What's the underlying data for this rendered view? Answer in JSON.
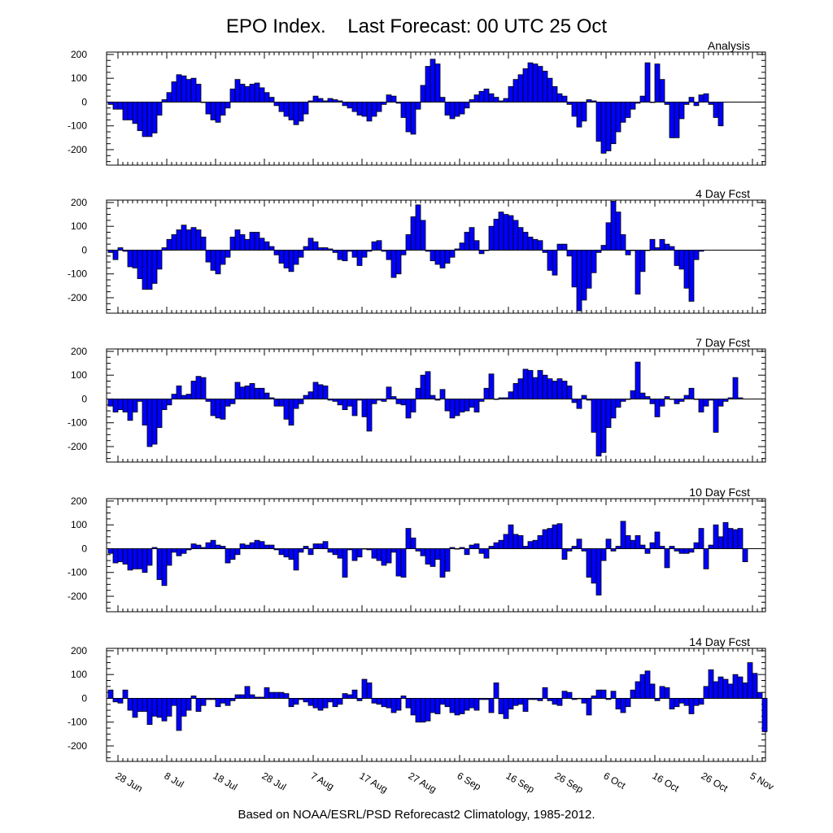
{
  "title": "EPO Index.    Last Forecast: 00 UTC 25 Oct",
  "footer": "Based on NOAA/ESRL/PSD Reforecast2 Climatology, 1985-2012.",
  "colors": {
    "bar_fill": "#0000ff",
    "bar_stroke": "#000000",
    "axis": "#000000"
  },
  "chart_data": {
    "type": "bar",
    "x_start": "2013-06-26",
    "x_ticks": [
      "28 Jun",
      "8 Jul",
      "18 Jul",
      "28 Jul",
      "7 Aug",
      "17 Aug",
      "27 Aug",
      "6 Sep",
      "16 Sep",
      "26 Sep",
      "6 Oct",
      "16 Oct",
      "26 Oct",
      "5 Nov"
    ],
    "y_ticks": [
      200,
      100,
      0,
      -100,
      -200
    ],
    "ylim": [
      -265,
      210
    ],
    "series": [
      {
        "name": "Analysis",
        "values": [
          -10,
          -30,
          -30,
          -75,
          -75,
          -90,
          -120,
          -145,
          -145,
          -130,
          -55,
          10,
          40,
          85,
          115,
          110,
          95,
          100,
          75,
          0,
          -50,
          -75,
          -85,
          -55,
          -25,
          55,
          95,
          75,
          65,
          75,
          80,
          60,
          40,
          20,
          -15,
          -40,
          -60,
          -75,
          -95,
          -80,
          -50,
          5,
          25,
          15,
          5,
          15,
          10,
          5,
          -15,
          -25,
          -40,
          -55,
          -60,
          -80,
          -60,
          -40,
          -10,
          30,
          25,
          -5,
          -65,
          -125,
          -135,
          -30,
          70,
          150,
          180,
          160,
          20,
          -55,
          -70,
          -60,
          -50,
          -25,
          10,
          30,
          45,
          55,
          35,
          20,
          5,
          15,
          65,
          95,
          115,
          140,
          165,
          160,
          150,
          130,
          100,
          65,
          35,
          25,
          -10,
          -60,
          -105,
          -80,
          10,
          5,
          -165,
          -215,
          -205,
          -175,
          -125,
          -85,
          -65,
          -30,
          -5,
          25,
          165,
          0,
          160,
          95,
          -10,
          -150,
          -150,
          -70,
          -10,
          20,
          -15,
          30,
          35,
          -10,
          -65,
          -100
        ]
      },
      {
        "name": "4 Day Fcst",
        "values": [
          -10,
          -40,
          10,
          -5,
          -70,
          -75,
          -120,
          -165,
          -165,
          -140,
          -80,
          10,
          45,
          65,
          85,
          105,
          85,
          95,
          85,
          55,
          -50,
          -85,
          -100,
          -60,
          -30,
          55,
          85,
          65,
          45,
          75,
          75,
          50,
          35,
          15,
          -20,
          -55,
          -75,
          -90,
          -60,
          -30,
          15,
          50,
          35,
          10,
          10,
          5,
          -10,
          -40,
          -45,
          -5,
          -30,
          -65,
          -30,
          -5,
          35,
          40,
          -5,
          -40,
          -115,
          -100,
          -20,
          65,
          140,
          190,
          125,
          -5,
          -45,
          -60,
          -75,
          -55,
          -30,
          5,
          30,
          75,
          95,
          40,
          -15,
          0,
          100,
          130,
          160,
          150,
          145,
          125,
          95,
          75,
          55,
          45,
          40,
          -10,
          -85,
          -105,
          25,
          25,
          -25,
          -155,
          -255,
          -210,
          -160,
          -95,
          -10,
          20,
          115,
          205,
          160,
          65,
          -20,
          0,
          -185,
          -90,
          0,
          45,
          10,
          45,
          25,
          15,
          -65,
          -80,
          -160,
          -215,
          -40,
          -5
        ]
      },
      {
        "name": "7 Day Fcst",
        "values": [
          -30,
          -55,
          -45,
          -55,
          -90,
          -55,
          -10,
          -110,
          -200,
          -190,
          -120,
          -45,
          -25,
          20,
          55,
          15,
          20,
          75,
          95,
          90,
          -10,
          -70,
          -80,
          -85,
          -30,
          -20,
          70,
          50,
          55,
          65,
          45,
          45,
          25,
          5,
          -30,
          -30,
          -85,
          -110,
          -40,
          -20,
          15,
          30,
          70,
          60,
          55,
          -5,
          -10,
          -25,
          -45,
          -30,
          -70,
          -5,
          -75,
          -135,
          -20,
          -5,
          -10,
          50,
          10,
          -20,
          -25,
          -80,
          -55,
          45,
          100,
          115,
          15,
          -5,
          40,
          -50,
          -80,
          -70,
          -55,
          -50,
          -35,
          -55,
          -10,
          45,
          105,
          0,
          5,
          5,
          30,
          65,
          85,
          125,
          120,
          90,
          120,
          100,
          85,
          75,
          85,
          75,
          55,
          -15,
          -40,
          15,
          -5,
          -140,
          -240,
          -225,
          -120,
          -80,
          -35,
          -10,
          0,
          35,
          155,
          25,
          10,
          -20,
          -75,
          -30,
          10,
          0,
          -20,
          -10,
          15,
          45,
          0,
          -55,
          -30,
          -5,
          -140,
          -30,
          -10,
          5,
          90,
          5
        ]
      },
      {
        "name": "10 Day Fcst",
        "values": [
          -20,
          -60,
          -55,
          -65,
          -90,
          -85,
          -85,
          -100,
          -70,
          5,
          -130,
          -155,
          -70,
          -15,
          -30,
          -20,
          -5,
          20,
          15,
          5,
          25,
          35,
          15,
          10,
          -60,
          -45,
          -25,
          20,
          15,
          25,
          35,
          30,
          15,
          15,
          -5,
          -25,
          -35,
          -45,
          -90,
          -15,
          10,
          -25,
          20,
          20,
          30,
          -15,
          -25,
          -40,
          -120,
          -5,
          -50,
          -35,
          0,
          -5,
          -40,
          -50,
          -70,
          -60,
          -15,
          -115,
          -120,
          85,
          45,
          -10,
          -30,
          -65,
          -75,
          -45,
          -120,
          -95,
          5,
          0,
          5,
          -25,
          15,
          20,
          -20,
          -40,
          10,
          25,
          35,
          60,
          100,
          60,
          55,
          10,
          30,
          35,
          55,
          80,
          85,
          100,
          105,
          -45,
          -10,
          10,
          40,
          -10,
          -120,
          -145,
          -195,
          -50,
          40,
          -10,
          10,
          115,
          55,
          35,
          55,
          15,
          -20,
          25,
          70,
          10,
          -80,
          10,
          -10,
          -20,
          -20,
          -15,
          25,
          85,
          -85,
          15,
          100,
          50,
          110,
          85,
          80,
          85,
          -55
        ]
      },
      {
        "name": "14 Day Fcst",
        "values": [
          35,
          -15,
          -20,
          35,
          -50,
          -80,
          -55,
          -55,
          -110,
          -75,
          -80,
          -95,
          -75,
          -30,
          -135,
          -75,
          -50,
          10,
          -55,
          -30,
          -5,
          -5,
          -35,
          -20,
          -30,
          -10,
          15,
          15,
          50,
          15,
          5,
          5,
          45,
          25,
          25,
          25,
          20,
          -35,
          -25,
          -5,
          -15,
          -30,
          -40,
          -50,
          -40,
          -15,
          -35,
          -25,
          20,
          15,
          35,
          -10,
          80,
          65,
          -20,
          -25,
          -35,
          -40,
          -60,
          -50,
          10,
          -40,
          -70,
          -100,
          -100,
          -95,
          -60,
          -65,
          -25,
          -35,
          -60,
          -70,
          -65,
          -50,
          -40,
          -50,
          -5,
          -5,
          -60,
          65,
          -65,
          -85,
          -45,
          -30,
          -25,
          -55,
          -5,
          -5,
          -10,
          45,
          -10,
          -25,
          -30,
          30,
          25,
          -5,
          0,
          -20,
          -70,
          10,
          35,
          35,
          -5,
          30,
          -45,
          -60,
          -35,
          35,
          70,
          100,
          115,
          60,
          -10,
          50,
          45,
          -45,
          -35,
          -20,
          -30,
          -65,
          -30,
          -25,
          50,
          120,
          70,
          90,
          80,
          60,
          100,
          90,
          65,
          150,
          105,
          25,
          -140
        ]
      }
    ]
  }
}
